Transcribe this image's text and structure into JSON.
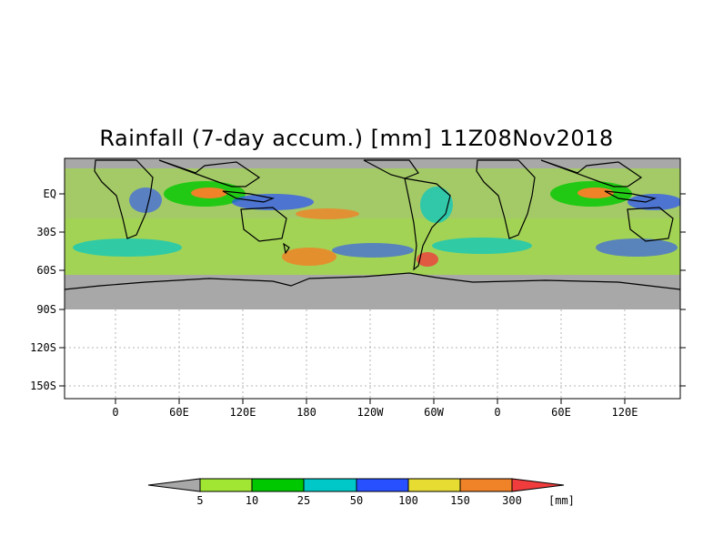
{
  "title": "Rainfall (7-day accum.) [mm] 11Z08Nov2018",
  "map": {
    "lat_labels": [
      "EQ",
      "30S",
      "60S",
      "90S",
      "120S",
      "150S"
    ],
    "lon_labels": [
      "0",
      "60E",
      "120E",
      "180",
      "120W",
      "60W",
      "0",
      "60E",
      "120E"
    ],
    "land_color": "#a8a8a8",
    "grid": true
  },
  "colorbar": {
    "levels": [
      "5",
      "10",
      "25",
      "50",
      "100",
      "150",
      "300"
    ],
    "unit": "[mm]",
    "colors": [
      "#a8a8a8",
      "#a0e632",
      "#00c800",
      "#00c8c8",
      "#2850ff",
      "#e6dc32",
      "#f08228",
      "#f03c3c"
    ]
  }
}
